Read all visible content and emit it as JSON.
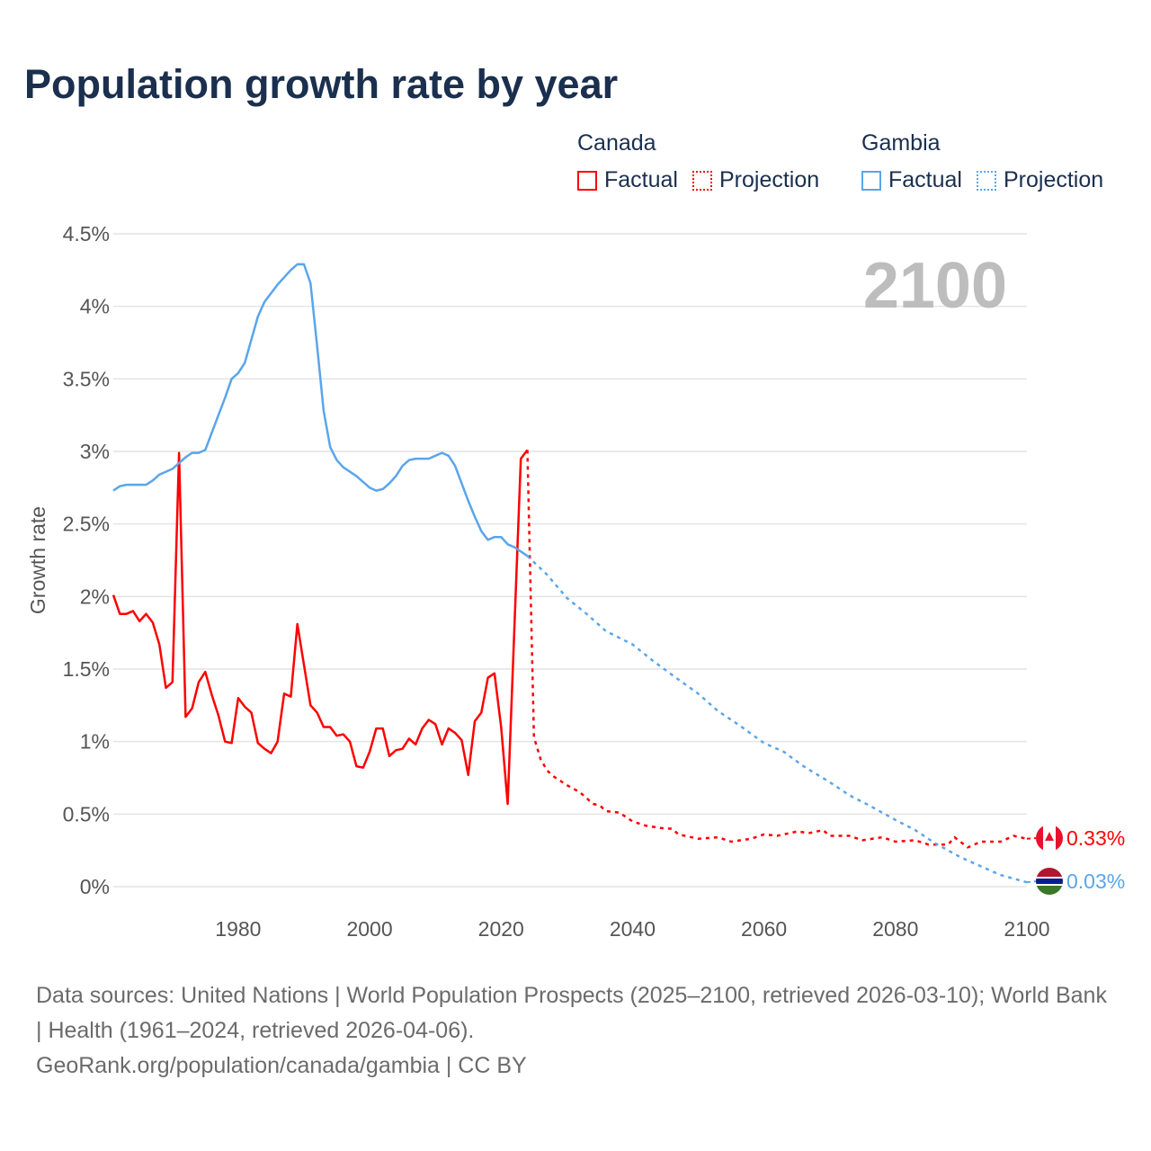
{
  "chart_data": {
    "type": "line",
    "title": "Population growth rate by year",
    "ylabel": "Growth rate",
    "xlabel": "",
    "xlim": [
      1961,
      2100
    ],
    "ylim": [
      0,
      4.5
    ],
    "x_ticks": [
      "1980",
      "2000",
      "2020",
      "2040",
      "2060",
      "2080",
      "2100"
    ],
    "x_tick_values": [
      1980,
      2000,
      2020,
      2040,
      2060,
      2080,
      2100
    ],
    "y_ticks": [
      "0%",
      "0.5%",
      "1%",
      "1.5%",
      "2%",
      "2.5%",
      "3%",
      "3.5%",
      "4%",
      "4.5%"
    ],
    "y_tick_values": [
      0,
      0.5,
      1,
      1.5,
      2,
      2.5,
      3,
      3.5,
      4,
      4.5
    ],
    "grid": true,
    "year_label": "2100",
    "legend": {
      "groups": [
        {
          "name": "Canada",
          "items": [
            "Factual",
            "Projection"
          ],
          "color": "#ff0000"
        },
        {
          "name": "Gambia",
          "items": [
            "Factual",
            "Projection"
          ],
          "color": "#5aa5ea"
        }
      ],
      "placement": "top-right"
    },
    "series": [
      {
        "name": "Canada",
        "kind": "Factual",
        "color": "#ff0000",
        "start_year": 1961,
        "values": [
          2.01,
          1.88,
          1.88,
          1.9,
          1.83,
          1.88,
          1.82,
          1.67,
          1.37,
          1.41,
          2.99,
          1.17,
          1.23,
          1.41,
          1.48,
          1.32,
          1.18,
          1.0,
          0.99,
          1.3,
          1.24,
          1.2,
          0.99,
          0.95,
          0.92,
          1.0,
          1.33,
          1.31,
          1.81,
          1.53,
          1.25,
          1.2,
          1.1,
          1.1,
          1.04,
          1.05,
          1.0,
          0.83,
          0.82,
          0.93,
          1.09,
          1.09,
          0.9,
          0.94,
          0.95,
          1.02,
          0.98,
          1.09,
          1.15,
          1.12,
          0.98,
          1.09,
          1.06,
          1.01,
          0.77,
          1.14,
          1.2,
          1.44,
          1.47,
          1.1,
          0.57,
          1.76,
          2.95,
          3.01
        ]
      },
      {
        "name": "Canada",
        "kind": "Projection",
        "color": "#ff0000",
        "points": [
          [
            2024,
            3.01
          ],
          [
            2025,
            1.03
          ],
          [
            2026,
            0.88
          ],
          [
            2027,
            0.8
          ],
          [
            2028,
            0.76
          ],
          [
            2030,
            0.7
          ],
          [
            2032,
            0.65
          ],
          [
            2033,
            0.61
          ],
          [
            2034,
            0.57
          ],
          [
            2035,
            0.56
          ],
          [
            2036,
            0.52
          ],
          [
            2038,
            0.51
          ],
          [
            2040,
            0.45
          ],
          [
            2042,
            0.42
          ],
          [
            2045,
            0.4
          ],
          [
            2046,
            0.4
          ],
          [
            2047,
            0.36
          ],
          [
            2050,
            0.33
          ],
          [
            2053,
            0.34
          ],
          [
            2055,
            0.31
          ],
          [
            2058,
            0.33
          ],
          [
            2060,
            0.36
          ],
          [
            2062,
            0.35
          ],
          [
            2065,
            0.38
          ],
          [
            2067,
            0.37
          ],
          [
            2069,
            0.39
          ],
          [
            2070,
            0.35
          ],
          [
            2073,
            0.35
          ],
          [
            2075,
            0.32
          ],
          [
            2078,
            0.34
          ],
          [
            2080,
            0.31
          ],
          [
            2083,
            0.32
          ],
          [
            2085,
            0.29
          ],
          [
            2088,
            0.29
          ],
          [
            2089,
            0.34
          ],
          [
            2091,
            0.27
          ],
          [
            2093,
            0.31
          ],
          [
            2096,
            0.31
          ],
          [
            2098,
            0.35
          ],
          [
            2100,
            0.33
          ]
        ]
      },
      {
        "name": "Gambia",
        "kind": "Factual",
        "color": "#5aa5ea",
        "start_year": 1961,
        "values": [
          2.73,
          2.76,
          2.77,
          2.77,
          2.77,
          2.77,
          2.8,
          2.84,
          2.86,
          2.88,
          2.92,
          2.96,
          2.99,
          2.99,
          3.01,
          3.13,
          3.25,
          3.37,
          3.5,
          3.54,
          3.61,
          3.77,
          3.93,
          4.03,
          4.09,
          4.15,
          4.2,
          4.25,
          4.29,
          4.29,
          4.16,
          3.73,
          3.28,
          3.03,
          2.94,
          2.89,
          2.86,
          2.83,
          2.79,
          2.75,
          2.73,
          2.74,
          2.78,
          2.83,
          2.9,
          2.94,
          2.95,
          2.95,
          2.95,
          2.97,
          2.99,
          2.97,
          2.9,
          2.78,
          2.66,
          2.55,
          2.45,
          2.39,
          2.41,
          2.41,
          2.36,
          2.34,
          2.31,
          2.28
        ]
      },
      {
        "name": "Gambia",
        "kind": "Projection",
        "color": "#5aa5ea",
        "points": [
          [
            2024,
            2.28
          ],
          [
            2027,
            2.15
          ],
          [
            2030,
            1.99
          ],
          [
            2033,
            1.88
          ],
          [
            2036,
            1.76
          ],
          [
            2040,
            1.67
          ],
          [
            2043,
            1.56
          ],
          [
            2046,
            1.46
          ],
          [
            2050,
            1.33
          ],
          [
            2053,
            1.21
          ],
          [
            2056,
            1.12
          ],
          [
            2060,
            0.99
          ],
          [
            2063,
            0.93
          ],
          [
            2066,
            0.83
          ],
          [
            2070,
            0.72
          ],
          [
            2073,
            0.63
          ],
          [
            2076,
            0.56
          ],
          [
            2080,
            0.46
          ],
          [
            2083,
            0.39
          ],
          [
            2086,
            0.3
          ],
          [
            2090,
            0.2
          ],
          [
            2093,
            0.14
          ],
          [
            2096,
            0.08
          ],
          [
            2100,
            0.03
          ]
        ]
      }
    ],
    "end_labels": [
      {
        "name": "Canada",
        "text": "0.33%",
        "value": 0.33,
        "color": "#ff0000"
      },
      {
        "name": "Gambia",
        "text": "0.03%",
        "value": 0.03,
        "color": "#5aa5ea"
      }
    ]
  },
  "footer": {
    "sources": "Data sources: United Nations | World Population Prospects (2025–2100, retrieved 2026-03-10); World Bank | Health (1961–2024, retrieved 2026-04-06).",
    "credit": "GeoRank.org/population/canada/gambia | CC BY"
  }
}
